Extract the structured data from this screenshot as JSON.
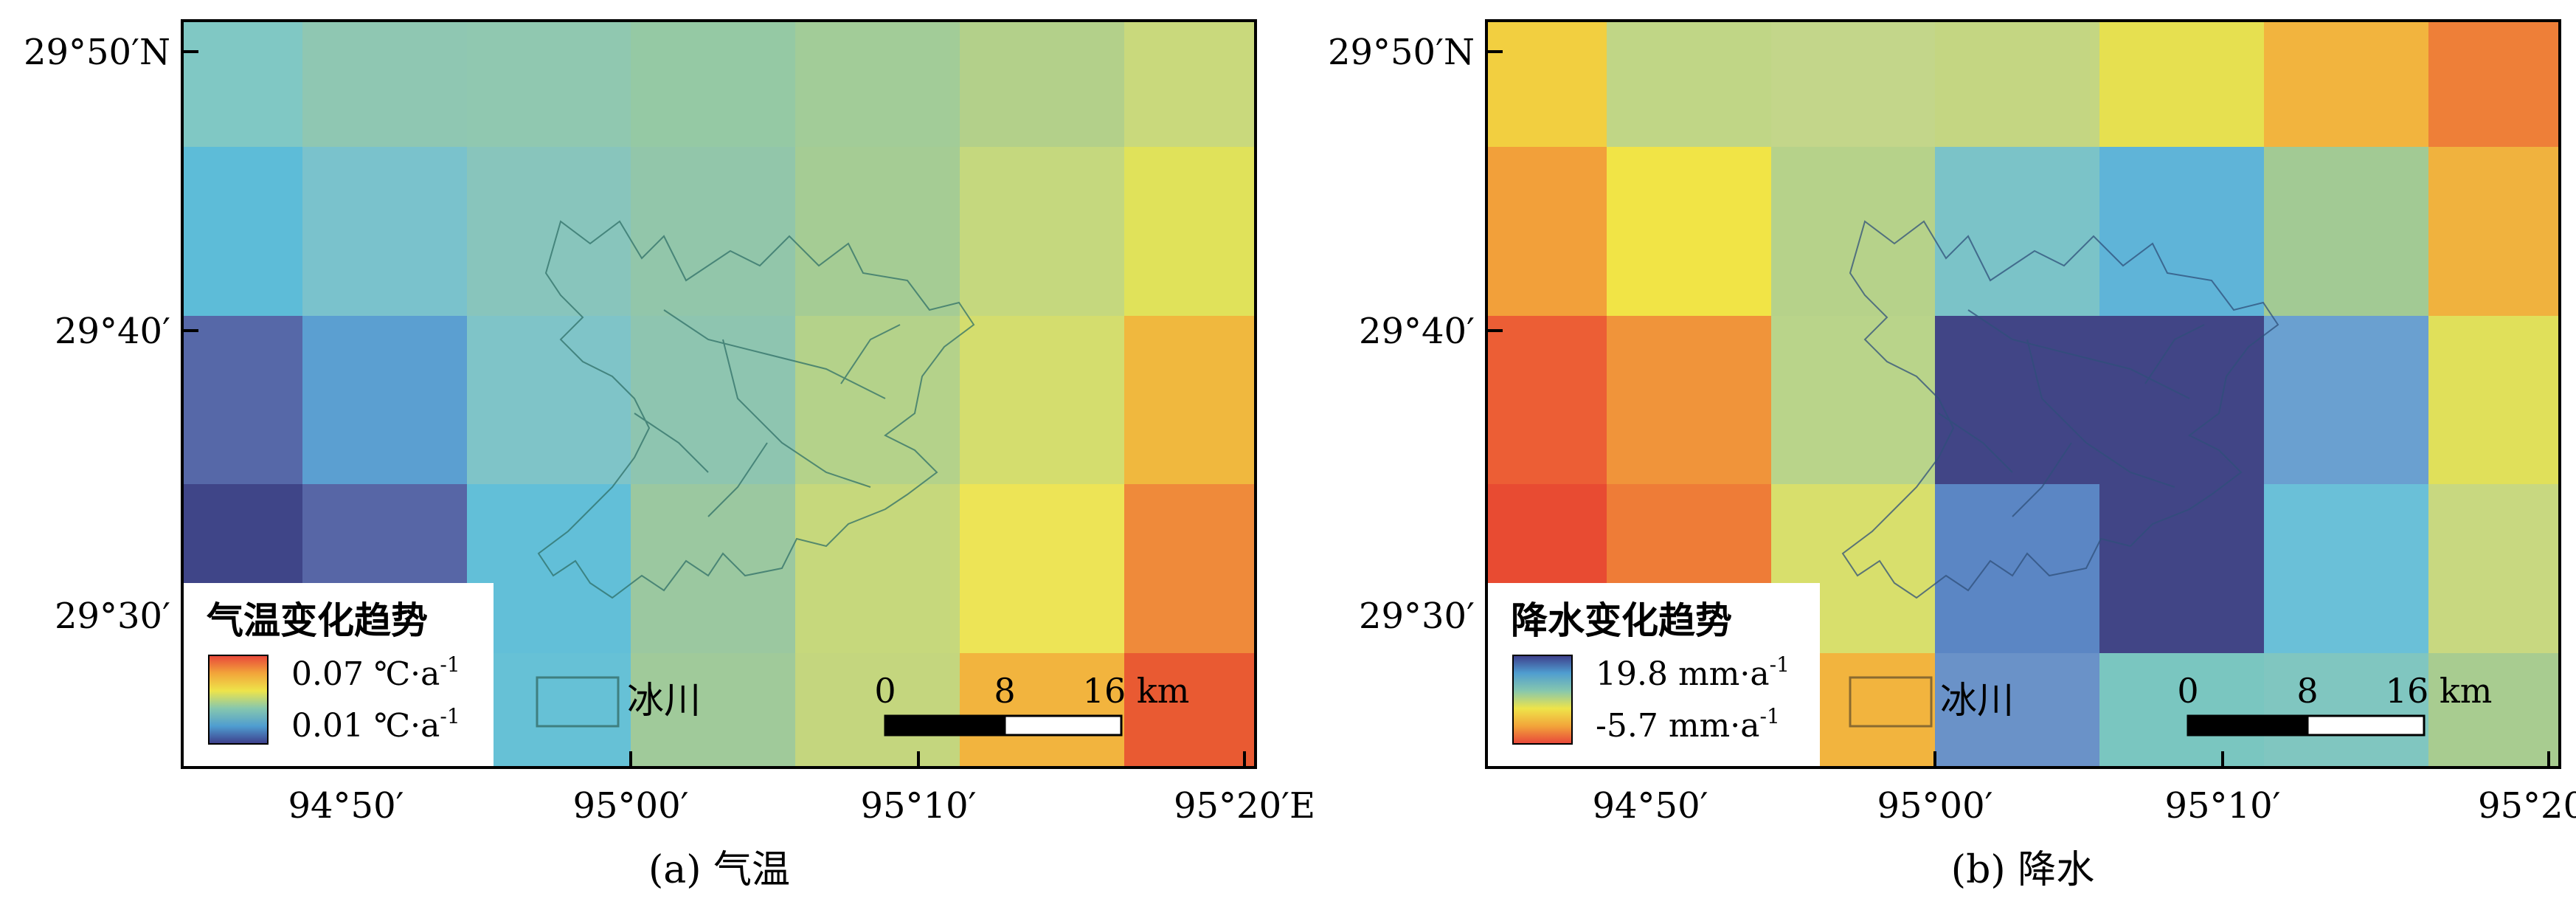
{
  "axes": {
    "lat_labels": [
      "29°50′N",
      "29°40′",
      "29°30′"
    ],
    "lon_labels": [
      "94°50′",
      "95°00′",
      "95°10′",
      "95°20′E"
    ],
    "lat_values": [
      29.8333,
      29.6667,
      29.5
    ],
    "lon_values": [
      94.8333,
      95.0,
      95.1667,
      95.3333
    ]
  },
  "scalebar": {
    "labels": [
      "0",
      "8",
      "16 km"
    ]
  },
  "glacier_label": "冰川",
  "panels": [
    {
      "caption": "(a) 气温",
      "legend_title": "气温变化趋势",
      "legend_max": "0.07 ℃·a",
      "legend_min": "0.01 ℃·a",
      "legend_exp": "-1",
      "colors": {
        "low": "#3d3d8a",
        "high": "#e8453a"
      },
      "grid_colors": [
        [
          "#80c8c4",
          "#8fc7b2",
          "#90c8b0",
          "#95c9a4",
          "#a2cc98",
          "#b3d08a",
          "#c9d97c"
        ],
        [
          "#5dbcd8",
          "#7ac2cc",
          "#88c5bc",
          "#92c6aa",
          "#a5cc94",
          "#c5d87e",
          "#e0e25a"
        ],
        [
          "#5668a8",
          "#5b9fd1",
          "#7fc4c8",
          "#8ec5b0",
          "#b4d28a",
          "#d4dd6e",
          "#f0b83e"
        ],
        [
          "#3f4588",
          "#5766a6",
          "#62bfd8",
          "#9bc8a0",
          "#c6d87c",
          "#ede456",
          "#ef8a3a"
        ],
        [
          "#ffffff",
          "#ffffff",
          "#66c1d6",
          "#a0ca9a",
          "#c4d67e",
          "#f2b43e",
          "#e95a32"
        ]
      ]
    },
    {
      "caption": "(b) 降水",
      "legend_title": "降水变化趋势",
      "legend_max": "19.8 mm·a",
      "legend_min": "-5.7 mm·a",
      "legend_exp": "-1",
      "colors": {
        "low": "#e8453a",
        "high": "#3d3d8a"
      },
      "grid_colors": [
        [
          "#f2cf40",
          "#c0d686",
          "#c3d68a",
          "#c4d682",
          "#e6e050",
          "#f2b43e",
          "#ee7f38"
        ],
        [
          "#f2a03a",
          "#f1e446",
          "#b6d28a",
          "#7bc3c8",
          "#5fb4d8",
          "#a2ca94",
          "#f0b23e"
        ],
        [
          "#ec5e35",
          "#f0943a",
          "#b9d48a",
          "#414586",
          "#414586",
          "#6aa0d0",
          "#e0e05a"
        ],
        [
          "#e84b32",
          "#ee7c37",
          "#d8df6c",
          "#5b86c4",
          "#414586",
          "#6ac0d8",
          "#c8d880"
        ],
        [
          "#ffffff",
          "#ffffff",
          "#f2b43e",
          "#6a92c8",
          "#7ac6c0",
          "#80c6c0",
          "#a8cc90"
        ]
      ]
    }
  ]
}
